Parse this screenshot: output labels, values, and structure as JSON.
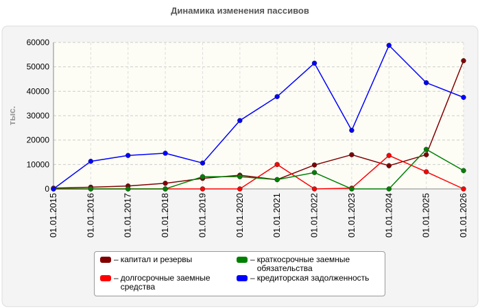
{
  "chart_data": {
    "type": "line",
    "title": "Динамика изменения пассивов",
    "y_label": "тыс.",
    "categories": [
      "01.01.2015",
      "01.01.2016",
      "01.01.2017",
      "01.01.2018",
      "01.01.2019",
      "01.01.2020",
      "01.01.2021",
      "01.01.2022",
      "01.01.2023",
      "01.01.2024",
      "01.01.2025",
      "01.01.2026"
    ],
    "series": [
      {
        "name": "капитал и резервы",
        "color": "#800000",
        "values": [
          300,
          700,
          1200,
          2300,
          4300,
          5600,
          3800,
          9800,
          14000,
          9500,
          14000,
          52500
        ]
      },
      {
        "name": "долгосрочные заемные средства",
        "color": "#ff0000",
        "values": [
          0,
          0,
          0,
          0,
          0,
          0,
          10000,
          0,
          300,
          13700,
          7000,
          0
        ]
      },
      {
        "name": "краткосрочные заемные обязательства",
        "color": "#008000",
        "values": [
          0,
          0,
          0,
          0,
          5000,
          5000,
          3800,
          6700,
          0,
          0,
          16200,
          7500
        ]
      },
      {
        "name": "кредиторская задолженность",
        "color": "#0000ff",
        "values": [
          0,
          11300,
          13700,
          14600,
          10600,
          28000,
          37800,
          51500,
          24000,
          58800,
          43500,
          37500
        ]
      }
    ],
    "ylim": [
      0,
      60000
    ],
    "yticks": [
      0,
      10000,
      20000,
      30000,
      40000,
      50000,
      60000
    ],
    "grid": true
  }
}
